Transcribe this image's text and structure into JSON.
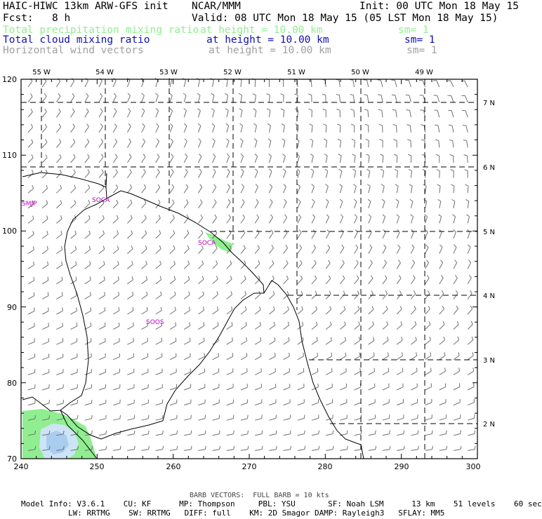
{
  "header": {
    "title_left": "HAIC-HIWC 13km ARW-GFS init",
    "title_center": "NCAR/MMM",
    "init_text": "Init: 00 UTC Mon 18 May 15",
    "fcst_label": "Fcst:",
    "fcst_value": "8 h",
    "valid_text": "Valid: 08 UTC Mon 18 May 15 (05 LST Mon 18 May 15)"
  },
  "fields": [
    {
      "name": "Total precipitation mixing ratio",
      "height": "at height = 10.00 km",
      "sm": "sm= 1",
      "color": "#90ee90"
    },
    {
      "name": "Total cloud mixing ratio",
      "height": "at height = 10.00 km",
      "sm": "sm= 1",
      "color": "#1010b0"
    },
    {
      "name": "Horizontal wind vectors",
      "height": "at height = 10.00 km",
      "sm": "sm= 1",
      "color": "#a0a0a0"
    }
  ],
  "map": {
    "x_ticks": [
      "240",
      "250",
      "260",
      "270",
      "280",
      "290",
      "300"
    ],
    "y_ticks": [
      "70",
      "80",
      "90",
      "100",
      "110",
      "120"
    ],
    "lon_labels": [
      "55 W",
      "54 W",
      "53 W",
      "52 W",
      "51 W",
      "50 W",
      "49 W"
    ],
    "lat_labels": [
      "7 N",
      "6 N",
      "5 N",
      "4 N",
      "3 N",
      "2 N"
    ],
    "stations": [
      "SMJP",
      "SOCA",
      "SOCA",
      "SOOS"
    ],
    "colors": {
      "precip": "#90ee90",
      "cloud_light": "#cde4f6",
      "cloud_mid": "#a9cdee",
      "barb": "#707070",
      "coast": "#000000"
    }
  },
  "footer": {
    "barb_note": "BARB VECTORS:  FULL BARB = 10 kts",
    "model_line1": "Model Info: V3.6.1    CU: KF      MP: Thompson     PBL: YSU       SF: Noah LSM      13 km    51 levels    60 sec",
    "model_line2": "LW: RRTMG    SW: RRTMG   DIFF: full    KM: 2D Smagor DAMP: Rayleigh3   SFLAY: MM5"
  }
}
